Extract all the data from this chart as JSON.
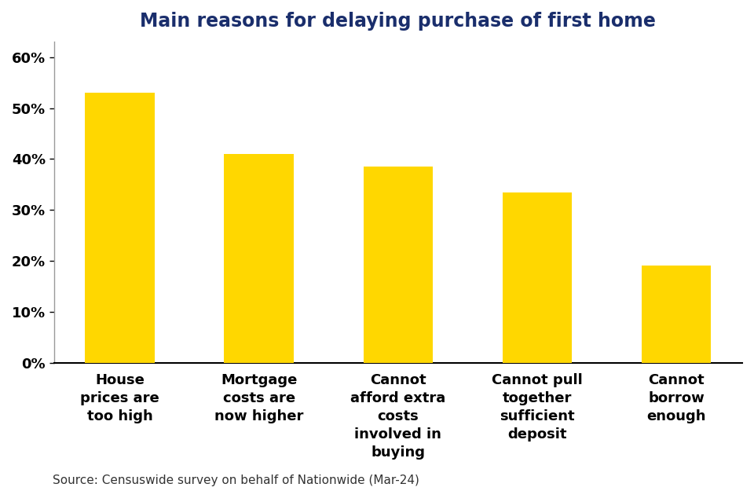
{
  "title": "Main reasons for delaying purchase of first home",
  "categories": [
    "House\nprices are\ntoo high",
    "Mortgage\ncosts are\nnow higher",
    "Cannot\nafford extra\ncosts\ninvolved in\nbuying",
    "Cannot pull\ntogether\nsufficient\ndeposit",
    "Cannot\nborrow\nenough"
  ],
  "values": [
    0.53,
    0.41,
    0.385,
    0.335,
    0.19
  ],
  "bar_color": "#FFD700",
  "ylim": [
    0,
    0.63
  ],
  "yticks": [
    0.0,
    0.1,
    0.2,
    0.3,
    0.4,
    0.5,
    0.6
  ],
  "source_text": "Source: Censuswide survey on behalf of Nationwide (Mar-24)",
  "background_color": "#FFFFFF",
  "title_color": "#1a2e6c",
  "title_fontsize": 17,
  "tick_label_fontsize": 13,
  "source_fontsize": 11,
  "bar_width": 0.5
}
